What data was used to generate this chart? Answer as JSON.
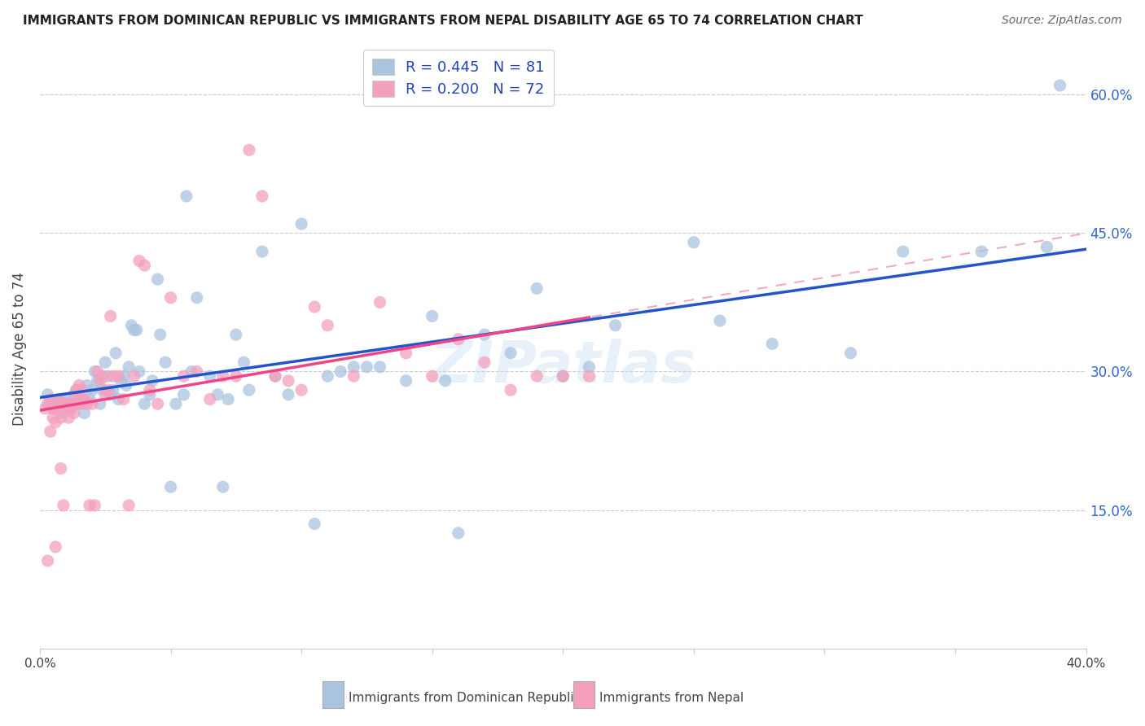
{
  "title": "IMMIGRANTS FROM DOMINICAN REPUBLIC VS IMMIGRANTS FROM NEPAL DISABILITY AGE 65 TO 74 CORRELATION CHART",
  "source": "Source: ZipAtlas.com",
  "ylabel": "Disability Age 65 to 74",
  "xmin": 0.0,
  "xmax": 0.4,
  "ymin": 0.0,
  "ymax": 0.65,
  "x_ticks": [
    0.0,
    0.05,
    0.1,
    0.15,
    0.2,
    0.25,
    0.3,
    0.35,
    0.4
  ],
  "y_ticks": [
    0.0,
    0.15,
    0.3,
    0.45,
    0.6
  ],
  "y_tick_labels": [
    "",
    "15.0%",
    "30.0%",
    "45.0%",
    "60.0%"
  ],
  "blue_color": "#aac4e0",
  "pink_color": "#f4a0bc",
  "blue_line_color": "#2255cc",
  "pink_line_color": "#ee4488",
  "pink_dash_color": "#f0a0c0",
  "watermark": "ZIPatlas",
  "legend_label_blue": "R = 0.445   N = 81",
  "legend_label_pink": "R = 0.200   N = 72",
  "bottom_label_blue": "Immigrants from Dominican Republic",
  "bottom_label_pink": "Immigrants from Nepal",
  "blue_scatter_x": [
    0.003,
    0.005,
    0.006,
    0.008,
    0.009,
    0.01,
    0.011,
    0.012,
    0.013,
    0.014,
    0.015,
    0.016,
    0.017,
    0.018,
    0.019,
    0.02,
    0.021,
    0.022,
    0.023,
    0.024,
    0.025,
    0.026,
    0.027,
    0.028,
    0.029,
    0.03,
    0.031,
    0.032,
    0.033,
    0.034,
    0.035,
    0.036,
    0.037,
    0.038,
    0.04,
    0.042,
    0.043,
    0.045,
    0.046,
    0.048,
    0.05,
    0.052,
    0.055,
    0.056,
    0.058,
    0.06,
    0.065,
    0.068,
    0.07,
    0.072,
    0.075,
    0.078,
    0.08,
    0.085,
    0.09,
    0.095,
    0.1,
    0.105,
    0.11,
    0.115,
    0.12,
    0.125,
    0.13,
    0.14,
    0.15,
    0.155,
    0.16,
    0.17,
    0.18,
    0.19,
    0.2,
    0.21,
    0.22,
    0.25,
    0.26,
    0.28,
    0.31,
    0.33,
    0.36,
    0.385,
    0.39
  ],
  "blue_scatter_y": [
    0.275,
    0.26,
    0.265,
    0.27,
    0.255,
    0.27,
    0.265,
    0.26,
    0.275,
    0.28,
    0.265,
    0.27,
    0.255,
    0.285,
    0.27,
    0.28,
    0.3,
    0.29,
    0.265,
    0.28,
    0.31,
    0.295,
    0.275,
    0.28,
    0.32,
    0.27,
    0.29,
    0.295,
    0.285,
    0.305,
    0.35,
    0.345,
    0.345,
    0.3,
    0.265,
    0.275,
    0.29,
    0.4,
    0.34,
    0.31,
    0.175,
    0.265,
    0.275,
    0.49,
    0.3,
    0.38,
    0.295,
    0.275,
    0.175,
    0.27,
    0.34,
    0.31,
    0.28,
    0.43,
    0.295,
    0.275,
    0.46,
    0.135,
    0.295,
    0.3,
    0.305,
    0.305,
    0.305,
    0.29,
    0.36,
    0.29,
    0.125,
    0.34,
    0.32,
    0.39,
    0.295,
    0.305,
    0.35,
    0.44,
    0.355,
    0.33,
    0.32,
    0.43,
    0.43,
    0.435,
    0.61
  ],
  "pink_scatter_x": [
    0.002,
    0.003,
    0.003,
    0.004,
    0.004,
    0.005,
    0.005,
    0.006,
    0.006,
    0.007,
    0.007,
    0.008,
    0.008,
    0.009,
    0.009,
    0.01,
    0.01,
    0.011,
    0.011,
    0.012,
    0.012,
    0.013,
    0.013,
    0.014,
    0.014,
    0.015,
    0.015,
    0.016,
    0.016,
    0.017,
    0.018,
    0.019,
    0.02,
    0.021,
    0.022,
    0.023,
    0.024,
    0.025,
    0.026,
    0.027,
    0.028,
    0.03,
    0.032,
    0.034,
    0.036,
    0.038,
    0.04,
    0.042,
    0.045,
    0.05,
    0.055,
    0.06,
    0.065,
    0.07,
    0.075,
    0.08,
    0.085,
    0.09,
    0.095,
    0.1,
    0.105,
    0.11,
    0.12,
    0.13,
    0.14,
    0.15,
    0.16,
    0.17,
    0.18,
    0.19,
    0.2,
    0.21
  ],
  "pink_scatter_y": [
    0.26,
    0.095,
    0.265,
    0.27,
    0.235,
    0.25,
    0.26,
    0.11,
    0.245,
    0.26,
    0.27,
    0.195,
    0.25,
    0.155,
    0.265,
    0.265,
    0.26,
    0.25,
    0.26,
    0.265,
    0.26,
    0.265,
    0.255,
    0.28,
    0.275,
    0.27,
    0.285,
    0.265,
    0.28,
    0.27,
    0.265,
    0.155,
    0.265,
    0.155,
    0.3,
    0.29,
    0.295,
    0.275,
    0.28,
    0.36,
    0.295,
    0.295,
    0.27,
    0.155,
    0.295,
    0.42,
    0.415,
    0.28,
    0.265,
    0.38,
    0.295,
    0.3,
    0.27,
    0.295,
    0.295,
    0.54,
    0.49,
    0.295,
    0.29,
    0.28,
    0.37,
    0.35,
    0.295,
    0.375,
    0.32,
    0.295,
    0.335,
    0.31,
    0.28,
    0.295,
    0.295,
    0.295
  ]
}
